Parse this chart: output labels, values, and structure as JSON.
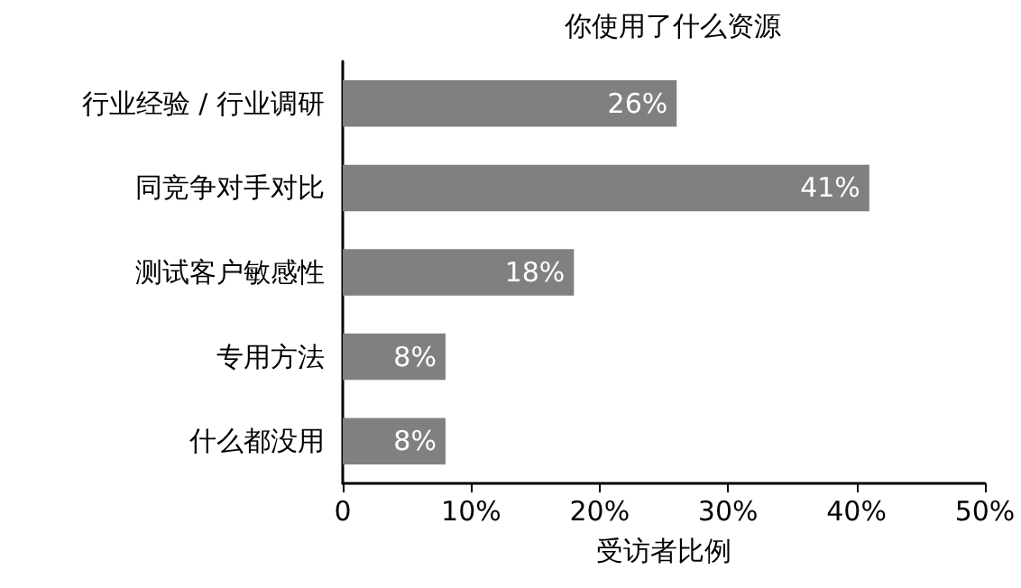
{
  "chart_data": {
    "type": "bar",
    "orientation": "horizontal",
    "title": "你使用了什么资源",
    "xlabel": "受访者比例",
    "categories": [
      "行业经验 / 行业调研",
      "同竞争对手对比",
      "测试客户敏感性",
      "专用方法",
      "什么都没用"
    ],
    "values": [
      26,
      41,
      18,
      8,
      8
    ],
    "color": "#808080",
    "value_labels": [
      "26%",
      "41%",
      "18%",
      "8%",
      "8%"
    ],
    "xlim": [
      0,
      50
    ],
    "xticks": [
      {
        "value": 0,
        "label": "0"
      },
      {
        "value": 10,
        "label": "10%"
      },
      {
        "value": 20,
        "label": "20%"
      },
      {
        "value": 30,
        "label": "30%"
      },
      {
        "value": 40,
        "label": "40%"
      },
      {
        "value": 50,
        "label": "50%"
      }
    ],
    "grid": false
  }
}
